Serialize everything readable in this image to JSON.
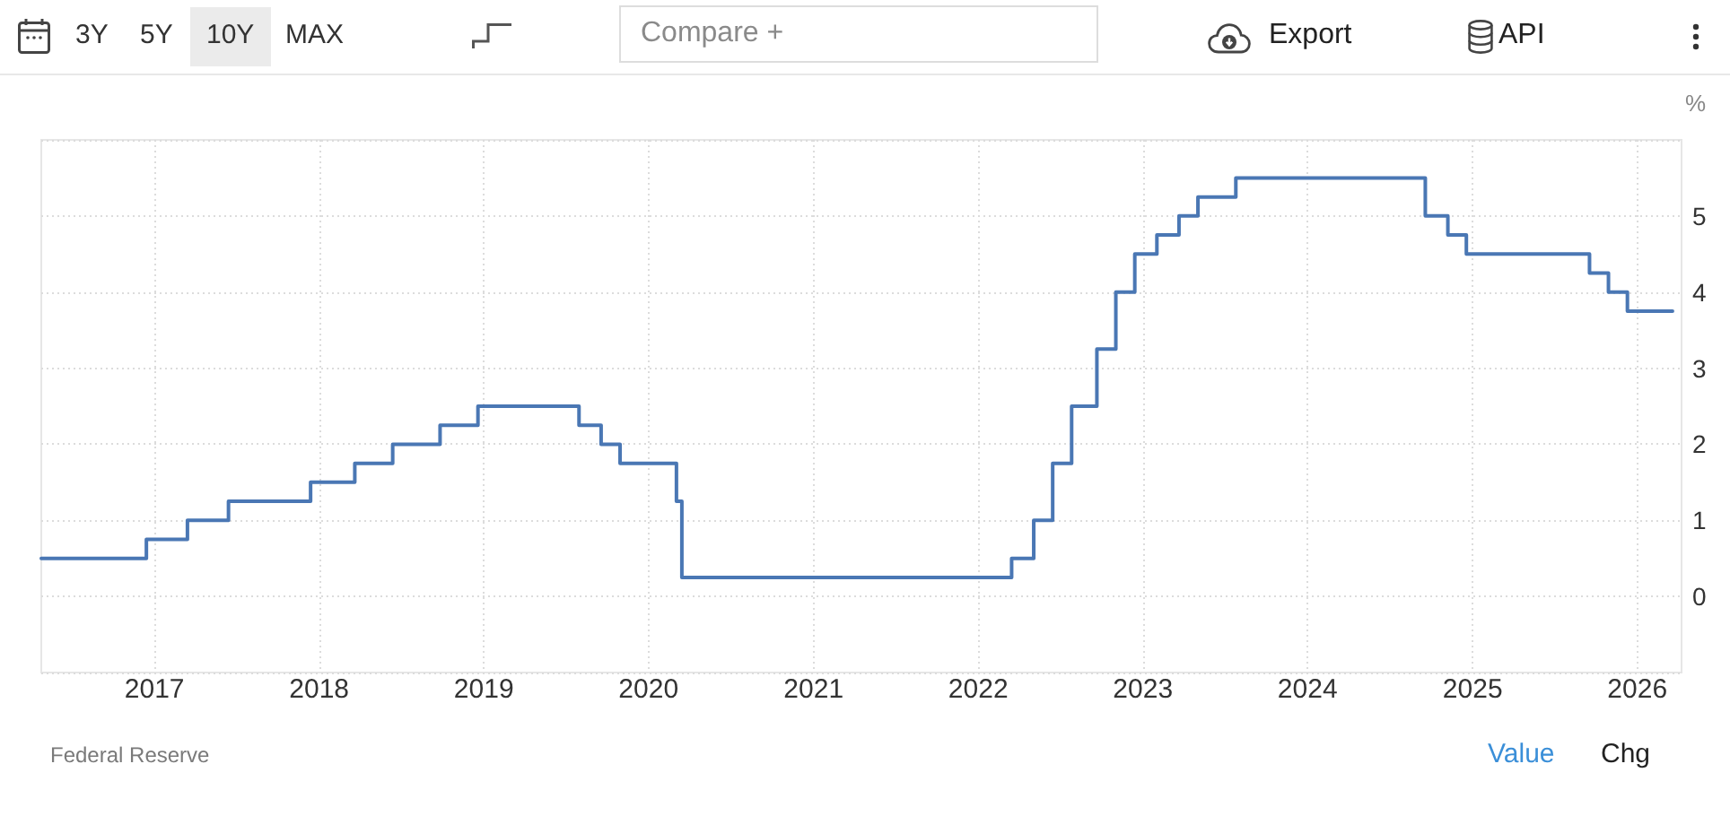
{
  "chart_data": {
    "type": "step",
    "ylabel": "%",
    "annotations": [
      "3Y",
      "5Y",
      "10Y",
      "MAX",
      "Compare +",
      "Export",
      "API",
      "Federal Reserve",
      "Value",
      "Chg"
    ],
    "x": [
      "2016-04-25",
      "2016-12-14",
      "2017-03-15",
      "2017-06-14",
      "2017-12-13",
      "2018-03-21",
      "2018-06-13",
      "2018-09-26",
      "2018-12-19",
      "2019-07-31",
      "2019-09-18",
      "2019-10-30",
      "2020-03-03",
      "2020-03-15",
      "2022-03-16",
      "2022-05-04",
      "2022-06-15",
      "2022-07-27",
      "2022-09-21",
      "2022-11-02",
      "2022-12-14",
      "2023-02-01",
      "2023-03-22",
      "2023-05-03",
      "2023-07-26",
      "2024-09-18",
      "2024-11-07",
      "2024-12-18",
      "2025-09-17",
      "2025-10-29",
      "2025-12-10",
      "2026-03-20"
    ],
    "series": [
      {
        "color": "#4a77b4",
        "values": [
          0.5,
          0.75,
          1,
          1.25,
          1.5,
          1.75,
          2,
          2.25,
          2.5,
          2.25,
          2,
          1.75,
          1.25,
          0.25,
          0.5,
          1,
          1.75,
          2.5,
          3.25,
          4,
          4.5,
          4.75,
          5,
          5.25,
          5.5,
          5,
          4.75,
          4.5,
          4.25,
          4,
          3.75,
          3.75
        ]
      }
    ],
    "xlim": [
      "2016-04-25",
      "2026-04-09"
    ],
    "xticks": [
      "2017",
      "2018",
      "2019",
      "2020",
      "2021",
      "2022",
      "2023",
      "2024",
      "2025",
      "2026"
    ],
    "ylim": [
      -1,
      6
    ],
    "yticks": [
      {
        "value": -1,
        "label": null
      },
      0,
      1,
      2,
      3,
      4,
      5,
      {
        "value": 6,
        "label": null
      }
    ],
    "grid": true,
    "marker": "none",
    "line_style": "solid"
  }
}
